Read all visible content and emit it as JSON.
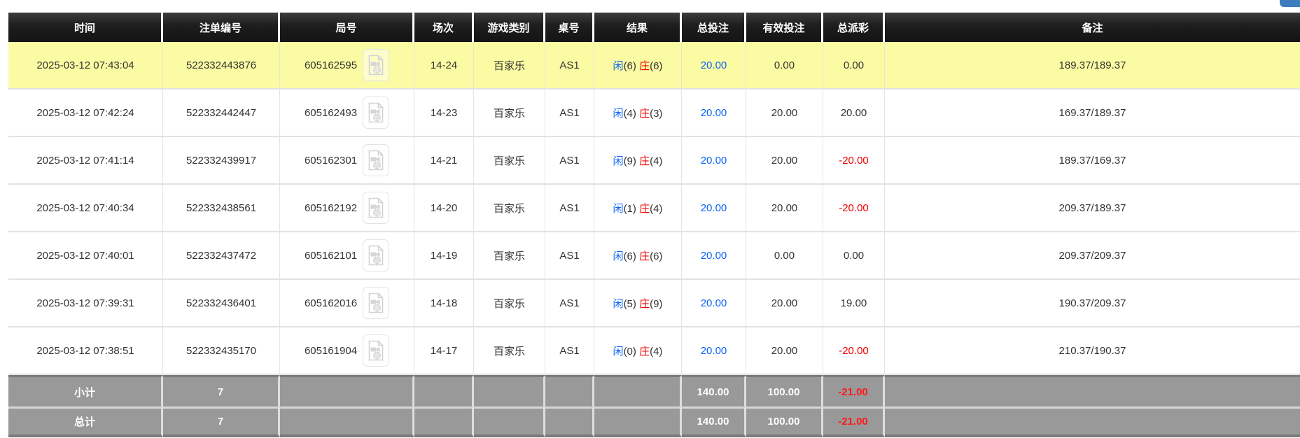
{
  "page": {
    "clipped_button": {
      "color": "#3e7dbd"
    }
  },
  "colors": {
    "header_bg": "#1d1d1d",
    "highlight_row_bg": "#fbfba3",
    "footer_bg": "#999999",
    "player_blue": "#0b64f4",
    "banker_red": "#f00000",
    "total_bet_blue": "#0b64f4",
    "negative_red": "#f00000"
  },
  "table": {
    "headers": [
      "时间",
      "注单编号",
      "局号",
      "场次",
      "游戏类别",
      "桌号",
      "结果",
      "总投注",
      "有效投注",
      "总派彩",
      "备注"
    ],
    "icons": {
      "video_icon": "video-file-icon"
    },
    "rows": [
      {
        "time": "2025-03-12 07:43:04",
        "bet_id": "522332443876",
        "round_id": "605162595",
        "session": "14-24",
        "game": "百家乐",
        "table_no": "AS1",
        "result_player_label": "闲",
        "result_player_value": "(6)",
        "result_banker_label": "庄",
        "result_banker_value": "(6)",
        "total_bet": "20.00",
        "valid_bet": "0.00",
        "payout": "0.00",
        "remark": "189.37/189.37",
        "highlighted": true
      },
      {
        "time": "2025-03-12 07:42:24",
        "bet_id": "522332442447",
        "round_id": "605162493",
        "session": "14-23",
        "game": "百家乐",
        "table_no": "AS1",
        "result_player_label": "闲",
        "result_player_value": "(4)",
        "result_banker_label": "庄",
        "result_banker_value": "(3)",
        "total_bet": "20.00",
        "valid_bet": "20.00",
        "payout": "20.00",
        "remark": "169.37/189.37",
        "highlighted": false
      },
      {
        "time": "2025-03-12 07:41:14",
        "bet_id": "522332439917",
        "round_id": "605162301",
        "session": "14-21",
        "game": "百家乐",
        "table_no": "AS1",
        "result_player_label": "闲",
        "result_player_value": "(9)",
        "result_banker_label": "庄",
        "result_banker_value": "(4)",
        "total_bet": "20.00",
        "valid_bet": "20.00",
        "payout": "-20.00",
        "remark": "189.37/169.37",
        "highlighted": false
      },
      {
        "time": "2025-03-12 07:40:34",
        "bet_id": "522332438561",
        "round_id": "605162192",
        "session": "14-20",
        "game": "百家乐",
        "table_no": "AS1",
        "result_player_label": "闲",
        "result_player_value": "(1)",
        "result_banker_label": "庄",
        "result_banker_value": "(4)",
        "total_bet": "20.00",
        "valid_bet": "20.00",
        "payout": "-20.00",
        "remark": "209.37/189.37",
        "highlighted": false
      },
      {
        "time": "2025-03-12 07:40:01",
        "bet_id": "522332437472",
        "round_id": "605162101",
        "session": "14-19",
        "game": "百家乐",
        "table_no": "AS1",
        "result_player_label": "闲",
        "result_player_value": "(6)",
        "result_banker_label": "庄",
        "result_banker_value": "(6)",
        "total_bet": "20.00",
        "valid_bet": "0.00",
        "payout": "0.00",
        "remark": "209.37/209.37",
        "highlighted": false
      },
      {
        "time": "2025-03-12 07:39:31",
        "bet_id": "522332436401",
        "round_id": "605162016",
        "session": "14-18",
        "game": "百家乐",
        "table_no": "AS1",
        "result_player_label": "闲",
        "result_player_value": "(5)",
        "result_banker_label": "庄",
        "result_banker_value": "(9)",
        "total_bet": "20.00",
        "valid_bet": "20.00",
        "payout": "19.00",
        "remark": "190.37/209.37",
        "highlighted": false
      },
      {
        "time": "2025-03-12 07:38:51",
        "bet_id": "522332435170",
        "round_id": "605161904",
        "session": "14-17",
        "game": "百家乐",
        "table_no": "AS1",
        "result_player_label": "闲",
        "result_player_value": "(0)",
        "result_banker_label": "庄",
        "result_banker_value": "(4)",
        "total_bet": "20.00",
        "valid_bet": "20.00",
        "payout": "-20.00",
        "remark": "210.37/190.37",
        "highlighted": false
      }
    ],
    "footer": [
      {
        "label": "小计",
        "count": "7",
        "total_bet": "140.00",
        "valid_bet": "100.00",
        "payout": "-21.00"
      },
      {
        "label": "总计",
        "count": "7",
        "total_bet": "140.00",
        "valid_bet": "100.00",
        "payout": "-21.00"
      }
    ]
  }
}
